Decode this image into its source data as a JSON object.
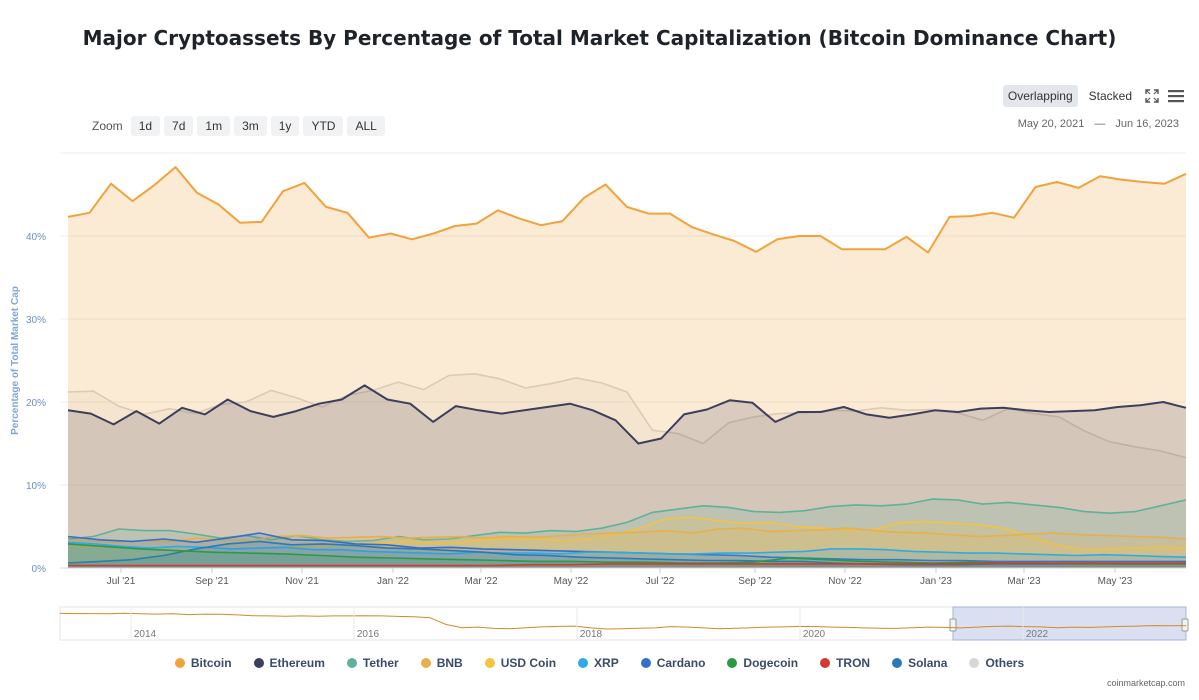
{
  "title": "Major Cryptoassets By Percentage of Total Market Capitalization (Bitcoin Dominance Chart)",
  "toolbar": {
    "zoom_label": "Zoom",
    "zoom_buttons": [
      "1d",
      "7d",
      "1m",
      "3m",
      "1y",
      "YTD",
      "ALL"
    ],
    "mode_overlapping": "Overlapping",
    "mode_stacked": "Stacked",
    "date_from": "May 20, 2021",
    "date_sep": "—",
    "date_to": "Jun 16, 2023"
  },
  "credit": "coinmarketcap.com",
  "colors": {
    "bitcoin": "#f0a33c",
    "ethereum": "#3b3f5c",
    "tether": "#5fb29a",
    "bnb": "#e8b04a",
    "usdcoin": "#f5c342",
    "xrp": "#30a9e8",
    "cardano": "#3470c9",
    "dogecoin": "#2c9a44",
    "tron": "#d33a34",
    "solana": "#2a7ab8",
    "others": "#d7d7d7"
  },
  "chart_data": {
    "type": "area",
    "ylabel": "Percentage of Total Market Cap",
    "ylim": [
      0,
      50
    ],
    "yticks": [
      "0%",
      "10%",
      "20%",
      "30%",
      "40%"
    ],
    "ytick_values": [
      0,
      10,
      20,
      30,
      40
    ],
    "xticks": [
      "Jul '21",
      "Sep '21",
      "Nov '21",
      "Jan '22",
      "Mar '22",
      "May '22",
      "Jul '22",
      "Sep '22",
      "Nov '22",
      "Jan '23",
      "Mar '23",
      "May '23"
    ],
    "x_start": "May 20, 2021",
    "x_end": "Jun 16, 2023",
    "series": [
      {
        "name": "Others",
        "key": "others",
        "values": [
          21.2,
          21.3,
          19.5,
          18.5,
          19.2,
          18.6,
          19.7,
          20.0,
          21.4,
          20.5,
          19.4,
          20.8,
          21.4,
          22.4,
          21.5,
          23.2,
          23.4,
          22.8,
          21.7,
          22.2,
          22.9,
          22.3,
          21.2,
          16.6,
          16.2,
          15.0,
          17.5,
          18.2,
          18.6,
          18.7,
          19.0,
          18.9,
          19.3,
          19.0,
          19.1,
          18.7,
          17.8,
          19.2,
          18.6,
          18.2,
          16.5,
          15.2,
          14.6,
          14.1,
          13.3
        ]
      },
      {
        "name": "Bitcoin",
        "key": "bitcoin",
        "values": [
          42.3,
          42.8,
          46.3,
          44.2,
          46.1,
          48.3,
          45.2,
          43.8,
          41.6,
          41.7,
          45.4,
          46.4,
          43.5,
          42.8,
          39.8,
          40.3,
          39.6,
          40.3,
          41.2,
          41.5,
          43.1,
          42.1,
          41.3,
          41.8,
          44.6,
          46.2,
          43.5,
          42.7,
          42.7,
          41.1,
          40.2,
          39.4,
          38.1,
          39.6,
          40.0,
          40.0,
          38.4,
          38.4,
          38.4,
          39.9,
          38.0,
          42.3,
          42.4,
          42.8,
          42.2,
          45.9,
          46.5,
          45.8,
          47.2,
          46.8,
          46.5,
          46.3,
          47.5
        ]
      },
      {
        "name": "Ethereum",
        "key": "ethereum",
        "values": [
          19.0,
          18.6,
          17.3,
          18.9,
          17.4,
          19.3,
          18.5,
          20.3,
          18.9,
          18.2,
          18.9,
          19.8,
          20.3,
          22.0,
          20.3,
          19.8,
          17.6,
          19.5,
          19.0,
          18.6,
          19.0,
          19.4,
          19.8,
          19.0,
          17.8,
          15.0,
          15.6,
          18.5,
          19.1,
          20.2,
          19.9,
          17.6,
          18.8,
          18.8,
          19.4,
          18.5,
          18.1,
          18.5,
          19.0,
          18.8,
          19.2,
          19.3,
          19.0,
          18.8,
          18.9,
          19.0,
          19.4,
          19.6,
          20.0,
          19.3
        ]
      },
      {
        "name": "Tether",
        "key": "tether",
        "values": [
          3.5,
          3.8,
          4.7,
          4.5,
          4.5,
          4.1,
          3.6,
          3.9,
          3.4,
          3.9,
          3.4,
          3.2,
          3.3,
          3.8,
          3.4,
          3.5,
          3.9,
          4.3,
          4.2,
          4.5,
          4.4,
          4.8,
          5.5,
          6.7,
          7.1,
          7.5,
          7.3,
          6.8,
          6.7,
          6.9,
          7.4,
          7.6,
          7.5,
          7.7,
          8.3,
          8.2,
          7.7,
          7.9,
          7.6,
          7.3,
          6.8,
          6.6,
          6.8,
          7.5,
          8.2
        ]
      },
      {
        "name": "USD Coin",
        "key": "usdcoin",
        "values": [
          2.6,
          2.5,
          2.4,
          2.3,
          2.2,
          2.3,
          2.4,
          2.3,
          2.5,
          2.6,
          2.7,
          2.8,
          3.0,
          3.2,
          3.0,
          3.1,
          3.4,
          3.6,
          3.5,
          3.3,
          3.5,
          4.0,
          4.8,
          5.9,
          6.1,
          5.7,
          5.4,
          5.5,
          5.0,
          4.8,
          4.6,
          4.6,
          5.5,
          5.6,
          5.4,
          5.2,
          4.8,
          3.8,
          2.8,
          2.2,
          2.3,
          2.4,
          2.5,
          2.4
        ]
      },
      {
        "name": "BNB",
        "key": "bnb",
        "values": [
          3.4,
          3.2,
          3.1,
          3.3,
          3.2,
          3.6,
          3.4,
          3.3,
          3.8,
          3.9,
          3.6,
          3.7,
          3.8,
          3.6,
          3.7,
          3.8,
          3.6,
          3.8,
          3.7,
          3.9,
          4.1,
          4.2,
          4.3,
          4.5,
          4.2,
          4.7,
          4.8,
          4.4,
          4.5,
          4.6,
          4.8,
          4.5,
          4.3,
          4.2,
          4.0,
          3.8,
          3.9,
          4.1,
          4.2,
          4.0,
          3.9,
          3.8,
          3.7,
          3.5
        ]
      },
      {
        "name": "Cardano",
        "key": "cardano",
        "values": [
          3.8,
          3.4,
          3.2,
          3.5,
          3.1,
          3.6,
          4.2,
          3.4,
          3.3,
          2.9,
          2.8,
          2.4,
          2.5,
          2.3,
          2.2,
          2.1,
          2.0,
          1.9,
          1.8,
          1.7,
          1.6,
          1.5,
          1.3,
          1.2,
          1.1,
          1.0,
          1.0,
          0.9,
          0.9,
          0.8,
          0.8,
          0.8,
          0.8,
          0.8,
          0.8,
          0.8
        ]
      },
      {
        "name": "XRP",
        "key": "xrp",
        "values": [
          3.1,
          2.9,
          2.6,
          2.4,
          2.6,
          2.5,
          2.3,
          2.4,
          2.5,
          2.2,
          2.2,
          2.0,
          1.9,
          1.8,
          1.7,
          1.9,
          1.8,
          1.8,
          1.7,
          1.9,
          1.9,
          1.8,
          1.7,
          1.7,
          1.8,
          1.8,
          1.9,
          2.0,
          2.3,
          2.3,
          2.2,
          2.0,
          1.9,
          1.8,
          1.8,
          1.7,
          1.6,
          1.5,
          1.6,
          1.5,
          1.4,
          1.3
        ]
      },
      {
        "name": "Solana",
        "key": "solana",
        "values": [
          0.6,
          0.8,
          1.0,
          1.5,
          2.3,
          2.9,
          3.2,
          2.8,
          2.9,
          2.7,
          2.4,
          2.3,
          2.1,
          1.9,
          1.6,
          1.5,
          1.3,
          1.2,
          1.1,
          1.0,
          0.9,
          0.9,
          0.8,
          0.8,
          0.6,
          0.5,
          0.4,
          0.4,
          0.4,
          0.5,
          0.5,
          0.5,
          0.6,
          0.5,
          0.5,
          0.6
        ]
      },
      {
        "name": "Dogecoin",
        "key": "dogecoin",
        "values": [
          2.9,
          2.6,
          2.3,
          2.1,
          1.9,
          1.8,
          1.7,
          1.5,
          1.3,
          1.2,
          1.1,
          1.0,
          0.9,
          0.8,
          0.8,
          0.7,
          0.7,
          0.6,
          0.6,
          0.7,
          1.2,
          1.0,
          0.8,
          0.7,
          0.6,
          0.7,
          0.6,
          0.6,
          0.5,
          0.5,
          0.5,
          0.5
        ]
      },
      {
        "name": "TRON",
        "key": "tron",
        "values": [
          0.3,
          0.3,
          0.3,
          0.3,
          0.3,
          0.3,
          0.3,
          0.3,
          0.3,
          0.3,
          0.3,
          0.3,
          0.4,
          0.4,
          0.5,
          0.5,
          0.5,
          0.5,
          0.5,
          0.5,
          0.5,
          0.5,
          0.5,
          0.5,
          0.6,
          0.6,
          0.6,
          0.6,
          0.6,
          0.6
        ]
      }
    ],
    "navigator": {
      "xticks": [
        "2014",
        "2016",
        "2018",
        "2020",
        "2022"
      ],
      "series": "Bitcoin",
      "values": [
        95,
        94,
        94,
        93,
        95,
        93,
        92,
        93,
        90,
        92,
        91,
        89,
        86,
        85,
        84,
        85,
        84,
        85,
        85,
        86,
        85,
        83,
        82,
        78,
        52,
        40,
        42,
        37,
        36,
        40,
        43,
        45,
        46,
        39,
        35,
        36,
        38,
        39,
        44,
        42,
        39,
        36,
        38,
        40,
        42,
        43,
        45,
        44,
        42,
        41,
        39,
        38,
        37,
        40,
        42,
        41,
        39,
        42,
        45,
        46,
        44,
        43,
        40,
        42,
        41,
        43,
        45,
        46,
        48,
        47,
        48
      ]
    },
    "legend": [
      "Bitcoin",
      "Ethereum",
      "Tether",
      "BNB",
      "USD Coin",
      "XRP",
      "Cardano",
      "Dogecoin",
      "TRON",
      "Solana",
      "Others"
    ],
    "legend_keys": [
      "bitcoin",
      "ethereum",
      "tether",
      "bnb",
      "usdcoin",
      "xrp",
      "cardano",
      "dogecoin",
      "tron",
      "solana",
      "others"
    ]
  }
}
